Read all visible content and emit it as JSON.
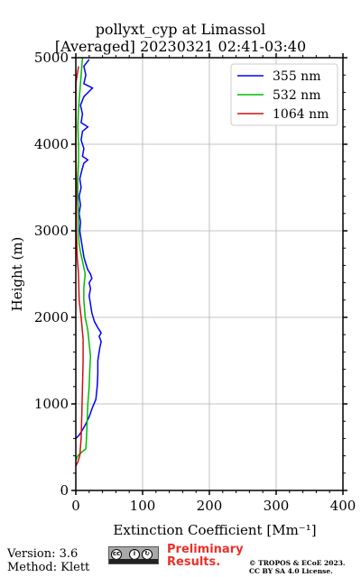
{
  "title_line1": "pollyxt_cyp at Limassol",
  "title_line2": "[Averaged] 20230321 02:41-03:40",
  "footer": {
    "version": "Version: 3.6",
    "method": "Method: Klett",
    "preliminary_line1": "Preliminary",
    "preliminary_line2": "Results.",
    "copyright_line1": "© TROPOS & ECoE 2023.",
    "copyright_line2": "CC BY SA 4.0 License.",
    "license_badge": {
      "cc": "cc",
      "by": "BY",
      "sa": "SA"
    }
  },
  "chart_data": {
    "type": "line",
    "xlabel": "Extinction Coefficient [Mm⁻¹]",
    "ylabel": "Height (m)",
    "xlim": [
      0,
      400
    ],
    "ylim": [
      0,
      5000
    ],
    "xticks": [
      "0",
      "100",
      "200",
      "300",
      "400"
    ],
    "yticks": [
      "0",
      "1000",
      "2000",
      "3000",
      "4000",
      "5000"
    ],
    "grid": true,
    "legend_position": "top-right",
    "series": [
      {
        "name": "355 nm",
        "color": "#0000ff",
        "points": [
          [
            0,
            600
          ],
          [
            5,
            640
          ],
          [
            10,
            700
          ],
          [
            15,
            770
          ],
          [
            20,
            850
          ],
          [
            25,
            960
          ],
          [
            30,
            1050
          ],
          [
            32,
            1200
          ],
          [
            33,
            1350
          ],
          [
            33,
            1500
          ],
          [
            36,
            1650
          ],
          [
            38,
            1720
          ],
          [
            35,
            1780
          ],
          [
            38,
            1820
          ],
          [
            33,
            1880
          ],
          [
            28,
            1950
          ],
          [
            24,
            2050
          ],
          [
            22,
            2150
          ],
          [
            20,
            2250
          ],
          [
            22,
            2330
          ],
          [
            20,
            2400
          ],
          [
            24,
            2450
          ],
          [
            22,
            2500
          ],
          [
            18,
            2550
          ],
          [
            15,
            2620
          ],
          [
            12,
            2700
          ],
          [
            10,
            2800
          ],
          [
            8,
            2900
          ],
          [
            6,
            3000
          ],
          [
            7,
            3100
          ],
          [
            5,
            3200
          ],
          [
            7,
            3300
          ],
          [
            5,
            3400
          ],
          [
            8,
            3500
          ],
          [
            6,
            3600
          ],
          [
            9,
            3700
          ],
          [
            12,
            3780
          ],
          [
            18,
            3820
          ],
          [
            10,
            3860
          ],
          [
            12,
            3950
          ],
          [
            8,
            4050
          ],
          [
            10,
            4150
          ],
          [
            18,
            4200
          ],
          [
            8,
            4250
          ],
          [
            10,
            4350
          ],
          [
            7,
            4450
          ],
          [
            12,
            4550
          ],
          [
            25,
            4650
          ],
          [
            12,
            4700
          ],
          [
            15,
            4800
          ],
          [
            12,
            4900
          ],
          [
            20,
            4980
          ]
        ]
      },
      {
        "name": "532 nm",
        "color": "#00bb00",
        "points": [
          [
            0,
            350
          ],
          [
            3,
            400
          ],
          [
            10,
            450
          ],
          [
            15,
            480
          ],
          [
            16,
            600
          ],
          [
            17,
            800
          ],
          [
            18,
            1000
          ],
          [
            20,
            1200
          ],
          [
            21,
            1400
          ],
          [
            22,
            1550
          ],
          [
            20,
            1700
          ],
          [
            18,
            1850
          ],
          [
            14,
            2000
          ],
          [
            12,
            2200
          ],
          [
            12,
            2350
          ],
          [
            14,
            2500
          ],
          [
            10,
            2650
          ],
          [
            7,
            2750
          ],
          [
            5,
            2850
          ],
          [
            4,
            3000
          ],
          [
            4,
            3200
          ],
          [
            3,
            3400
          ],
          [
            3,
            3600
          ],
          [
            4,
            3800
          ],
          [
            4,
            4000
          ],
          [
            3,
            4200
          ],
          [
            4,
            4400
          ],
          [
            6,
            4600
          ],
          [
            8,
            4800
          ],
          [
            10,
            5000
          ]
        ]
      },
      {
        "name": "1064 nm",
        "color": "#d01010",
        "points": [
          [
            0,
            280
          ],
          [
            3,
            330
          ],
          [
            6,
            400
          ],
          [
            8,
            600
          ],
          [
            9,
            900
          ],
          [
            10,
            1200
          ],
          [
            11,
            1500
          ],
          [
            11,
            1750
          ],
          [
            8,
            2000
          ],
          [
            5,
            2200
          ],
          [
            4,
            2500
          ],
          [
            2,
            2700
          ],
          [
            1,
            3000
          ],
          [
            1,
            3500
          ],
          [
            0,
            4000
          ],
          [
            0,
            4500
          ],
          [
            0,
            4700
          ],
          [
            2,
            4800
          ],
          [
            4,
            4900
          ]
        ]
      }
    ]
  }
}
